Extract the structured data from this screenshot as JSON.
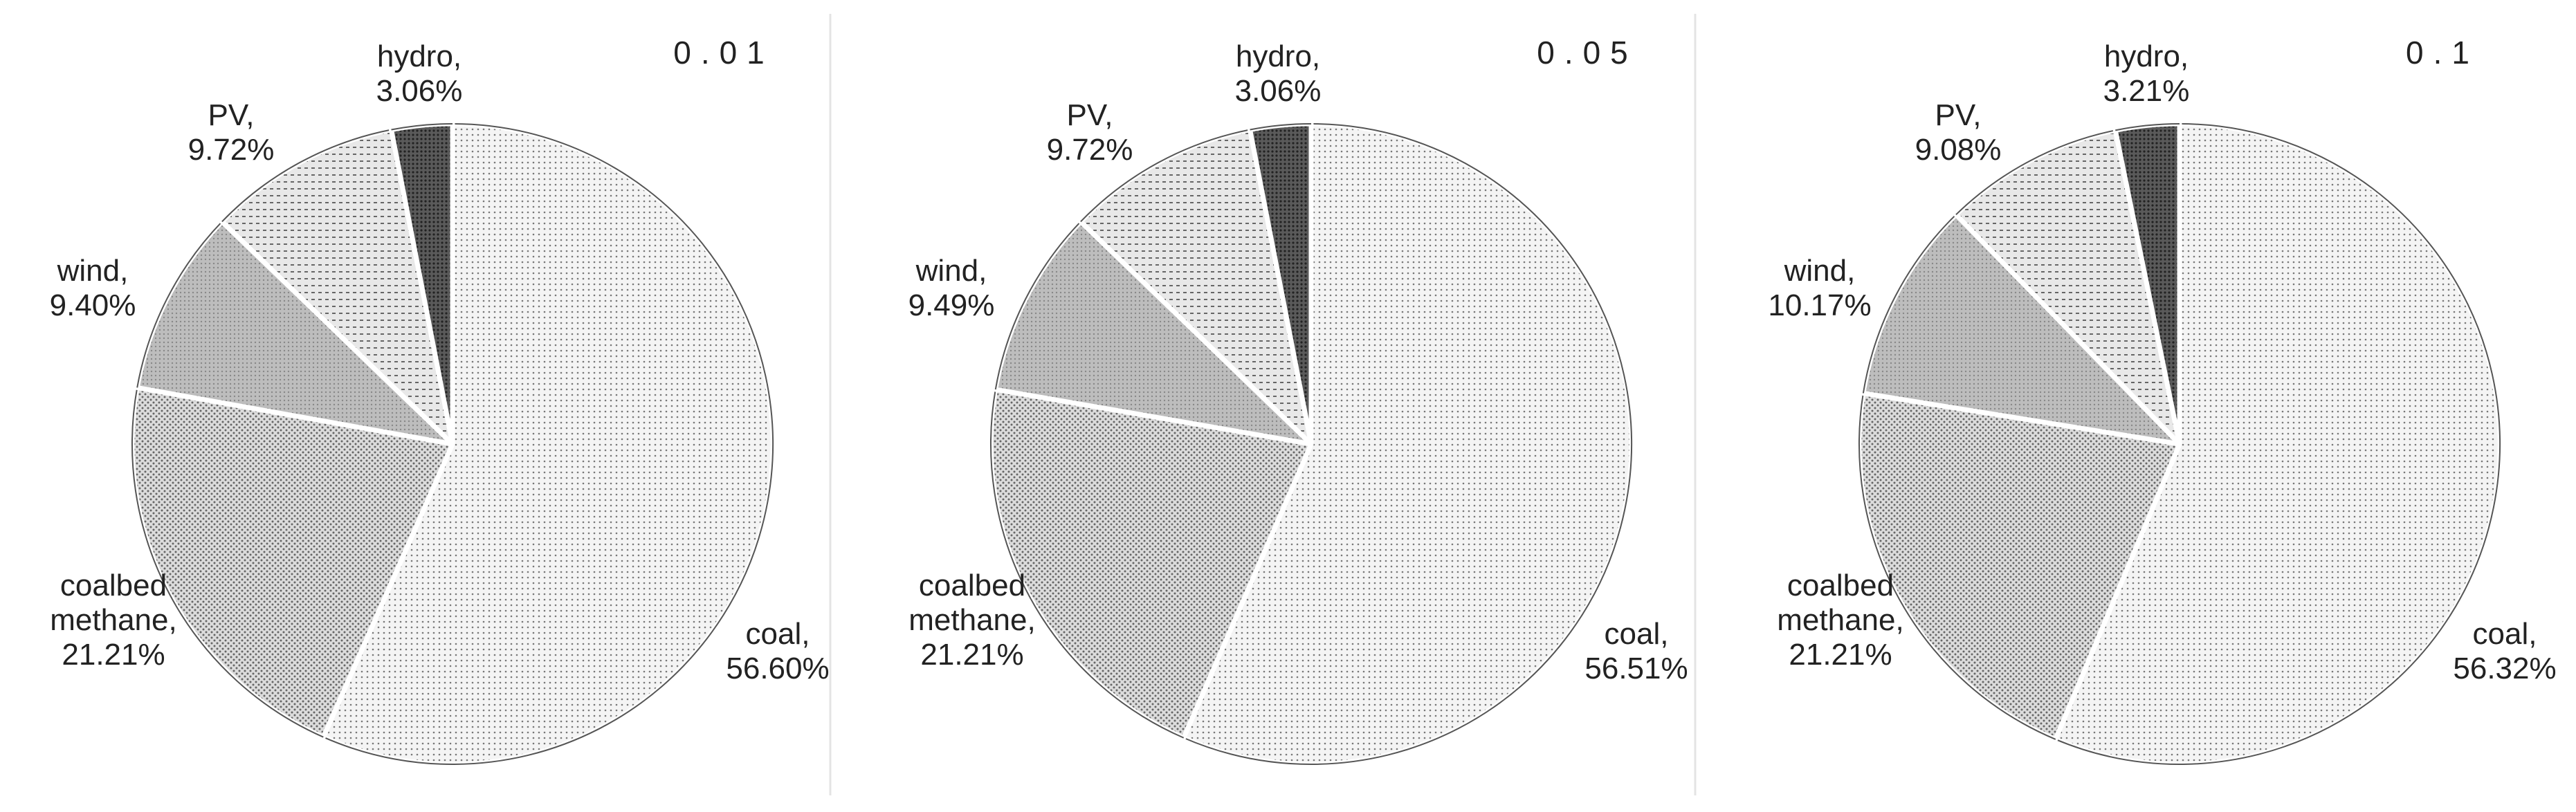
{
  "chart_data": [
    {
      "type": "pie",
      "title": "0.01",
      "separator": ",",
      "categories": [
        "coal",
        "coalbed methane",
        "wind",
        "PV",
        "hydro"
      ],
      "values": [
        56.6,
        21.21,
        9.4,
        9.72,
        3.06
      ],
      "value_labels": [
        "56.60%",
        "21.21%",
        "9.40%",
        "9.72%",
        "3.06%"
      ],
      "colors": [
        "#f4f4f4",
        "#dcdcdc",
        "#bdbdbd",
        "#e8e8e8",
        "#5a5a5a"
      ]
    },
    {
      "type": "pie",
      "title": "0.05",
      "separator": ",",
      "categories": [
        "coal",
        "coalbed methane",
        "wind",
        "PV",
        "hydro"
      ],
      "values": [
        56.51,
        21.21,
        9.49,
        9.72,
        3.06
      ],
      "value_labels": [
        "56.51%",
        "21.21%",
        "9.49%",
        "9.72%",
        "3.06%"
      ],
      "colors": [
        "#f4f4f4",
        "#dcdcdc",
        "#bdbdbd",
        "#e8e8e8",
        "#5a5a5a"
      ]
    },
    {
      "type": "pie",
      "title": "0.1",
      "separator": ",",
      "categories": [
        "coal",
        "coalbed methane",
        "wind",
        "PV",
        "hydro"
      ],
      "values": [
        56.32,
        21.21,
        10.17,
        9.08,
        3.21
      ],
      "value_labels": [
        "56.32%",
        "21.21%",
        "10.17%",
        "9.08%",
        "3.21%"
      ],
      "colors": [
        "#f4f4f4",
        "#dcdcdc",
        "#bdbdbd",
        "#e8e8e8",
        "#5a5a5a"
      ]
    }
  ]
}
